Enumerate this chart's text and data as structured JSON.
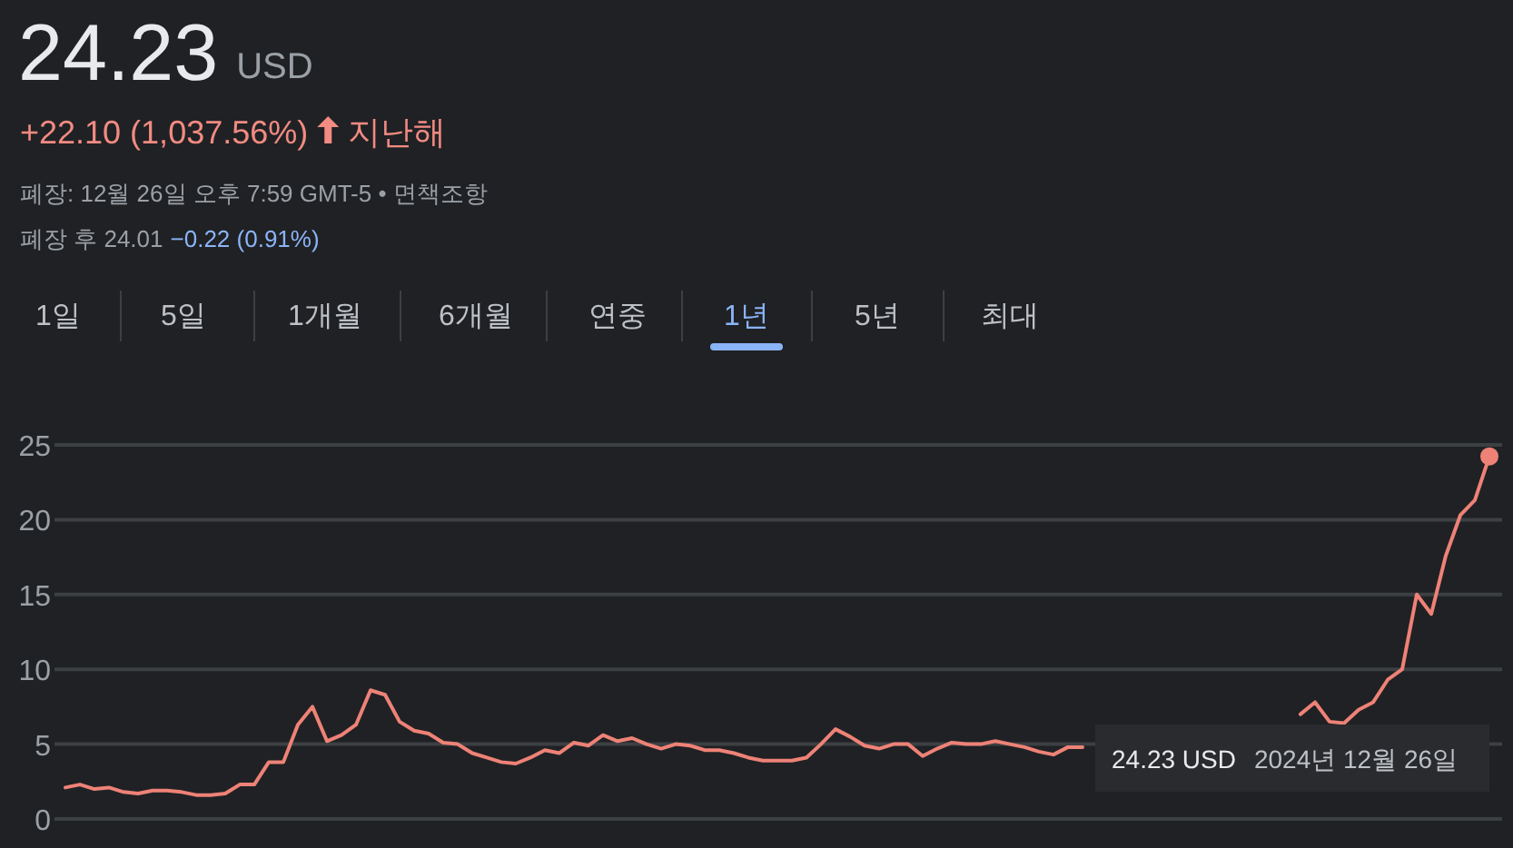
{
  "chart_data": {
    "type": "line",
    "title": "24.23",
    "subtitle": "USD",
    "annotations": [
      "+22.10 (1,037.56%)",
      "지난해",
      "폐장: 12월 26일 오후 7:59 GMT-5 • 면책조항",
      "폐장 후 24.01",
      "−0.22 (0.91%)",
      "1일",
      "5일",
      "1개월",
      "6개월",
      "연중",
      "1년",
      "5년",
      "최대",
      "24.23 USD",
      "2024년 12월 26일"
    ],
    "categories": [
      null,
      null,
      null,
      null,
      null,
      null,
      null,
      null,
      null,
      null,
      null,
      null,
      null,
      null,
      null,
      null,
      null,
      null,
      null,
      null,
      null,
      null,
      null,
      null,
      null,
      null,
      null,
      null,
      null,
      null,
      null,
      null,
      null,
      null,
      null,
      null,
      null,
      null,
      null,
      null,
      null,
      null,
      null,
      null,
      null,
      null,
      null,
      null,
      null,
      null,
      null,
      null,
      null,
      null,
      null,
      null,
      null,
      null,
      null,
      null,
      null,
      null,
      null,
      null,
      null,
      null,
      null,
      null,
      null,
      null,
      null,
      null,
      null,
      null,
      null,
      null,
      null,
      null,
      null,
      null,
      null,
      null,
      null,
      null,
      null,
      null,
      null,
      null,
      null,
      null,
      null,
      null,
      null,
      null,
      null,
      null,
      null,
      null,
      null
    ],
    "series": [
      {
        "color": "#ee8277",
        "values": [
          2.1,
          2.3,
          2.0,
          2.1,
          1.8,
          1.7,
          1.9,
          1.9,
          1.8,
          1.6,
          1.6,
          1.7,
          2.3,
          2.3,
          3.8,
          3.8,
          6.3,
          7.5,
          5.2,
          5.6,
          6.3,
          8.6,
          8.3,
          6.5,
          5.9,
          5.7,
          5.1,
          5.0,
          4.4,
          4.1,
          3.8,
          3.7,
          4.1,
          4.6,
          4.4,
          5.1,
          4.9,
          5.6,
          5.2,
          5.4,
          5.0,
          4.7,
          5.0,
          4.9,
          4.6,
          4.6,
          4.4,
          4.1,
          3.9,
          3.9,
          3.9,
          4.1,
          5.0,
          6.0,
          5.5,
          4.9,
          4.7,
          5.0,
          5.0,
          4.2,
          4.7,
          5.1,
          5.0,
          5.0,
          5.2,
          5.0,
          4.8,
          4.5,
          4.3,
          4.8,
          4.8,
          null,
          null,
          null,
          null,
          null,
          null,
          null,
          null,
          null,
          null,
          null,
          null,
          null,
          null,
          null,
          null,
          null,
          null,
          null,
          null,
          null,
          null,
          null,
          null,
          null,
          null,
          null,
          null
        ]
      },
      {
        "color": "#ee8277",
        "values": [
          null,
          null,
          null,
          null,
          null,
          null,
          null,
          null,
          null,
          null,
          null,
          null,
          null,
          null,
          null,
          null,
          null,
          null,
          null,
          null,
          null,
          null,
          null,
          null,
          null,
          null,
          null,
          null,
          null,
          null,
          null,
          null,
          null,
          null,
          null,
          null,
          null,
          null,
          null,
          null,
          null,
          null,
          null,
          null,
          null,
          null,
          null,
          null,
          null,
          null,
          null,
          null,
          null,
          null,
          null,
          null,
          null,
          null,
          null,
          null,
          null,
          null,
          null,
          null,
          null,
          null,
          null,
          null,
          null,
          null,
          null,
          null,
          null,
          null,
          null,
          null,
          null,
          null,
          null,
          null,
          null,
          null,
          null,
          null,
          null,
          7.0,
          7.8,
          6.5,
          6.4,
          7.3,
          7.8,
          9.3,
          10.0,
          15.0,
          13.7,
          17.6,
          20.3,
          21.3,
          24.23
        ]
      },
      {
        "type": "scatter",
        "color": "#ee8277",
        "marker": "circle",
        "values": [
          null,
          null,
          null,
          null,
          null,
          null,
          null,
          null,
          null,
          null,
          null,
          null,
          null,
          null,
          null,
          null,
          null,
          null,
          null,
          null,
          null,
          null,
          null,
          null,
          null,
          null,
          null,
          null,
          null,
          null,
          null,
          null,
          null,
          null,
          null,
          null,
          null,
          null,
          null,
          null,
          null,
          null,
          null,
          null,
          null,
          null,
          null,
          null,
          null,
          null,
          null,
          null,
          null,
          null,
          null,
          null,
          null,
          null,
          null,
          null,
          null,
          null,
          null,
          null,
          null,
          null,
          null,
          null,
          null,
          null,
          null,
          null,
          null,
          null,
          null,
          null,
          null,
          null,
          null,
          null,
          null,
          null,
          null,
          null,
          null,
          null,
          null,
          null,
          null,
          null,
          null,
          null,
          null,
          null,
          null,
          null,
          null,
          null,
          24.23
        ]
      }
    ],
    "ylim": [
      0,
      25
    ],
    "yticks": [
      0,
      5,
      10,
      15,
      20,
      25
    ],
    "grid": "y"
  }
}
